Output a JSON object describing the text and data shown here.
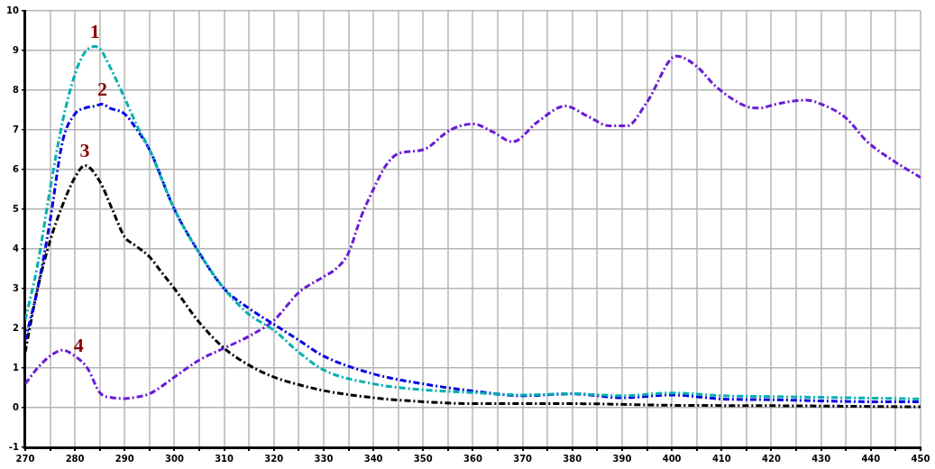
{
  "chart_data": {
    "type": "line",
    "xlim": [
      270,
      450
    ],
    "ylim": [
      -1,
      10
    ],
    "xticks": [
      270,
      {
        "value": 275,
        "label": null
      },
      280,
      {
        "value": 285,
        "label": null
      },
      290,
      {
        "value": 295,
        "label": null
      },
      300,
      {
        "value": 305,
        "label": null
      },
      310,
      {
        "value": 315,
        "label": null
      },
      320,
      {
        "value": 325,
        "label": null
      },
      330,
      {
        "value": 335,
        "label": null
      },
      340,
      {
        "value": 345,
        "label": null
      },
      350,
      {
        "value": 355,
        "label": null
      },
      360,
      {
        "value": 365,
        "label": null
      },
      370,
      {
        "value": 375,
        "label": null
      },
      380,
      {
        "value": 385,
        "label": null
      },
      390,
      {
        "value": 395,
        "label": null
      },
      400,
      {
        "value": 405,
        "label": null
      },
      410,
      {
        "value": 415,
        "label": null
      },
      420,
      {
        "value": 425,
        "label": null
      },
      430,
      {
        "value": 435,
        "label": null
      },
      440,
      {
        "value": 445,
        "label": null
      },
      450
    ],
    "yticks": [
      -1,
      0,
      1,
      2,
      3,
      4,
      5,
      6,
      7,
      8,
      9,
      10
    ],
    "grid": true,
    "legend": false,
    "marker": "none",
    "line_style": "dashed",
    "series": [
      {
        "name": "1",
        "color": "#00b0b0",
        "x": [
          270,
          272.5,
          275,
          277.5,
          280,
          282,
          284,
          285,
          287,
          290,
          292.5,
          295,
          300,
          305,
          310,
          315,
          320,
          325,
          330,
          340,
          350,
          360,
          370,
          380,
          390,
          400,
          410,
          420,
          430,
          440,
          450
        ],
        "values": [
          2.2,
          3.6,
          5.5,
          7.2,
          8.4,
          8.95,
          9.1,
          9.05,
          8.6,
          7.8,
          7.1,
          6.5,
          5.0,
          3.9,
          3.0,
          2.35,
          1.95,
          1.4,
          0.95,
          0.6,
          0.45,
          0.38,
          0.32,
          0.35,
          0.3,
          0.37,
          0.3,
          0.28,
          0.26,
          0.24,
          0.22
        ]
      },
      {
        "name": "2",
        "color": "#0000e6",
        "x": [
          270,
          272.5,
          275,
          277.5,
          280,
          282,
          284,
          285.5,
          287,
          290,
          292.5,
          295,
          300,
          305,
          310,
          315,
          320,
          325,
          330,
          340,
          350,
          360,
          370,
          380,
          390,
          400,
          410,
          420,
          430,
          440,
          450
        ],
        "values": [
          1.7,
          3.0,
          4.7,
          6.7,
          7.4,
          7.55,
          7.6,
          7.65,
          7.55,
          7.4,
          7.0,
          6.5,
          5.0,
          3.9,
          3.0,
          2.5,
          2.1,
          1.7,
          1.3,
          0.85,
          0.6,
          0.42,
          0.3,
          0.35,
          0.25,
          0.32,
          0.22,
          0.2,
          0.17,
          0.15,
          0.15
        ]
      },
      {
        "name": "3",
        "color": "#000000",
        "x": [
          270,
          272.5,
          275,
          277.5,
          280,
          282,
          285,
          287.5,
          290,
          292,
          295,
          297.5,
          300,
          305,
          310,
          315,
          320,
          325,
          330,
          340,
          350,
          360,
          380,
          400,
          420,
          450
        ],
        "values": [
          1.4,
          3.0,
          4.2,
          5.1,
          5.8,
          6.1,
          5.7,
          5.0,
          4.3,
          4.1,
          3.8,
          3.4,
          3.0,
          2.15,
          1.5,
          1.07,
          0.77,
          0.58,
          0.43,
          0.25,
          0.15,
          0.1,
          0.1,
          0.06,
          0.05,
          0.02
        ]
      },
      {
        "name": "4",
        "color": "#6a1ad8",
        "x": [
          270,
          272.5,
          275,
          277.5,
          280,
          282.5,
          285,
          287.5,
          290,
          292.5,
          295,
          300,
          305,
          310,
          315,
          320,
          325,
          330,
          332.5,
          335,
          337.5,
          340,
          342.5,
          345,
          350,
          355.5,
          360,
          364,
          368,
          373,
          378.6,
          383,
          387.5,
          391,
          395,
          400.9,
          405,
          408.8,
          414.8,
          417.7,
          421,
          427,
          430,
          435,
          439.3,
          444.8,
          450
        ],
        "values": [
          0.6,
          1.0,
          1.3,
          1.45,
          1.3,
          1.0,
          0.38,
          0.25,
          0.23,
          0.27,
          0.35,
          0.77,
          1.2,
          1.5,
          1.8,
          2.2,
          2.9,
          3.3,
          3.5,
          3.9,
          4.8,
          5.5,
          6.1,
          6.4,
          6.5,
          7.0,
          7.15,
          6.95,
          6.7,
          7.2,
          7.6,
          7.35,
          7.1,
          7.1,
          7.7,
          8.86,
          8.6,
          8.1,
          7.6,
          7.55,
          7.65,
          7.75,
          7.65,
          7.3,
          6.7,
          6.2,
          5.8
        ]
      }
    ]
  }
}
